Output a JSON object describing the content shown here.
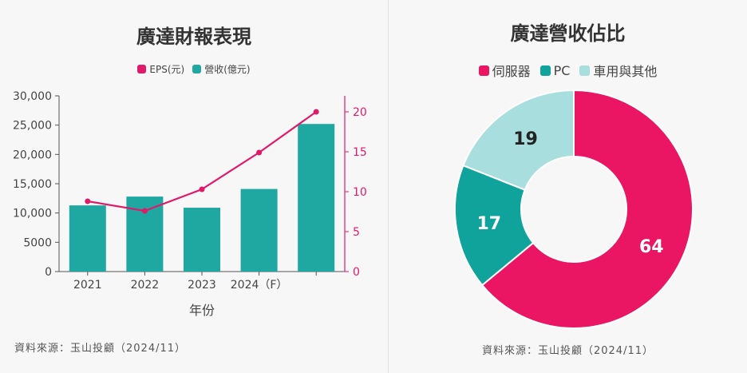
{
  "colors": {
    "eps": "#e01a69",
    "revenue": "#1fa7a1",
    "server": "#ea1663",
    "pc": "#0fa39c",
    "other": "#a8dedd"
  },
  "left": {
    "title": "廣達財報表現",
    "legend": {
      "eps": "EPS(元)",
      "revenue": "營收(億元)"
    },
    "source": "資料來源：玉山投顧（2024/11）"
  },
  "right": {
    "title": "廣達營收佔比",
    "legend": {
      "server": "伺服器",
      "pc": "PC",
      "other": "車用與其他"
    },
    "source": "資料來源：玉山投顧（2024/11）"
  },
  "chart_data": [
    {
      "type": "bar",
      "title": "廣達財報表現",
      "xlabel": "年份",
      "categories": [
        "2021",
        "2022",
        "2023",
        "2024（F）",
        ""
      ],
      "series": [
        {
          "name": "營收(億元)",
          "type": "bar",
          "axis": "left",
          "values": [
            11300,
            12800,
            10900,
            14100,
            25200
          ]
        },
        {
          "name": "EPS(元)",
          "type": "line",
          "axis": "right",
          "values": [
            8.8,
            7.6,
            10.3,
            14.9,
            20.0
          ]
        }
      ],
      "y_left": {
        "ylim": [
          0,
          30000
        ],
        "ticks": [
          "0",
          "5000",
          "10,000",
          "15,000",
          "20,000",
          "25,000",
          "30,000"
        ]
      },
      "y_right": {
        "ylim": [
          0,
          22
        ],
        "ticks": [
          "0",
          "5",
          "10",
          "15",
          "20"
        ]
      },
      "grid": false,
      "legend_position": "top"
    },
    {
      "type": "pie",
      "title": "廣達營收佔比",
      "donut": true,
      "labels": [
        "伺服器",
        "PC",
        "車用與其他"
      ],
      "values": [
        64,
        17,
        19
      ],
      "legend_position": "top"
    }
  ]
}
